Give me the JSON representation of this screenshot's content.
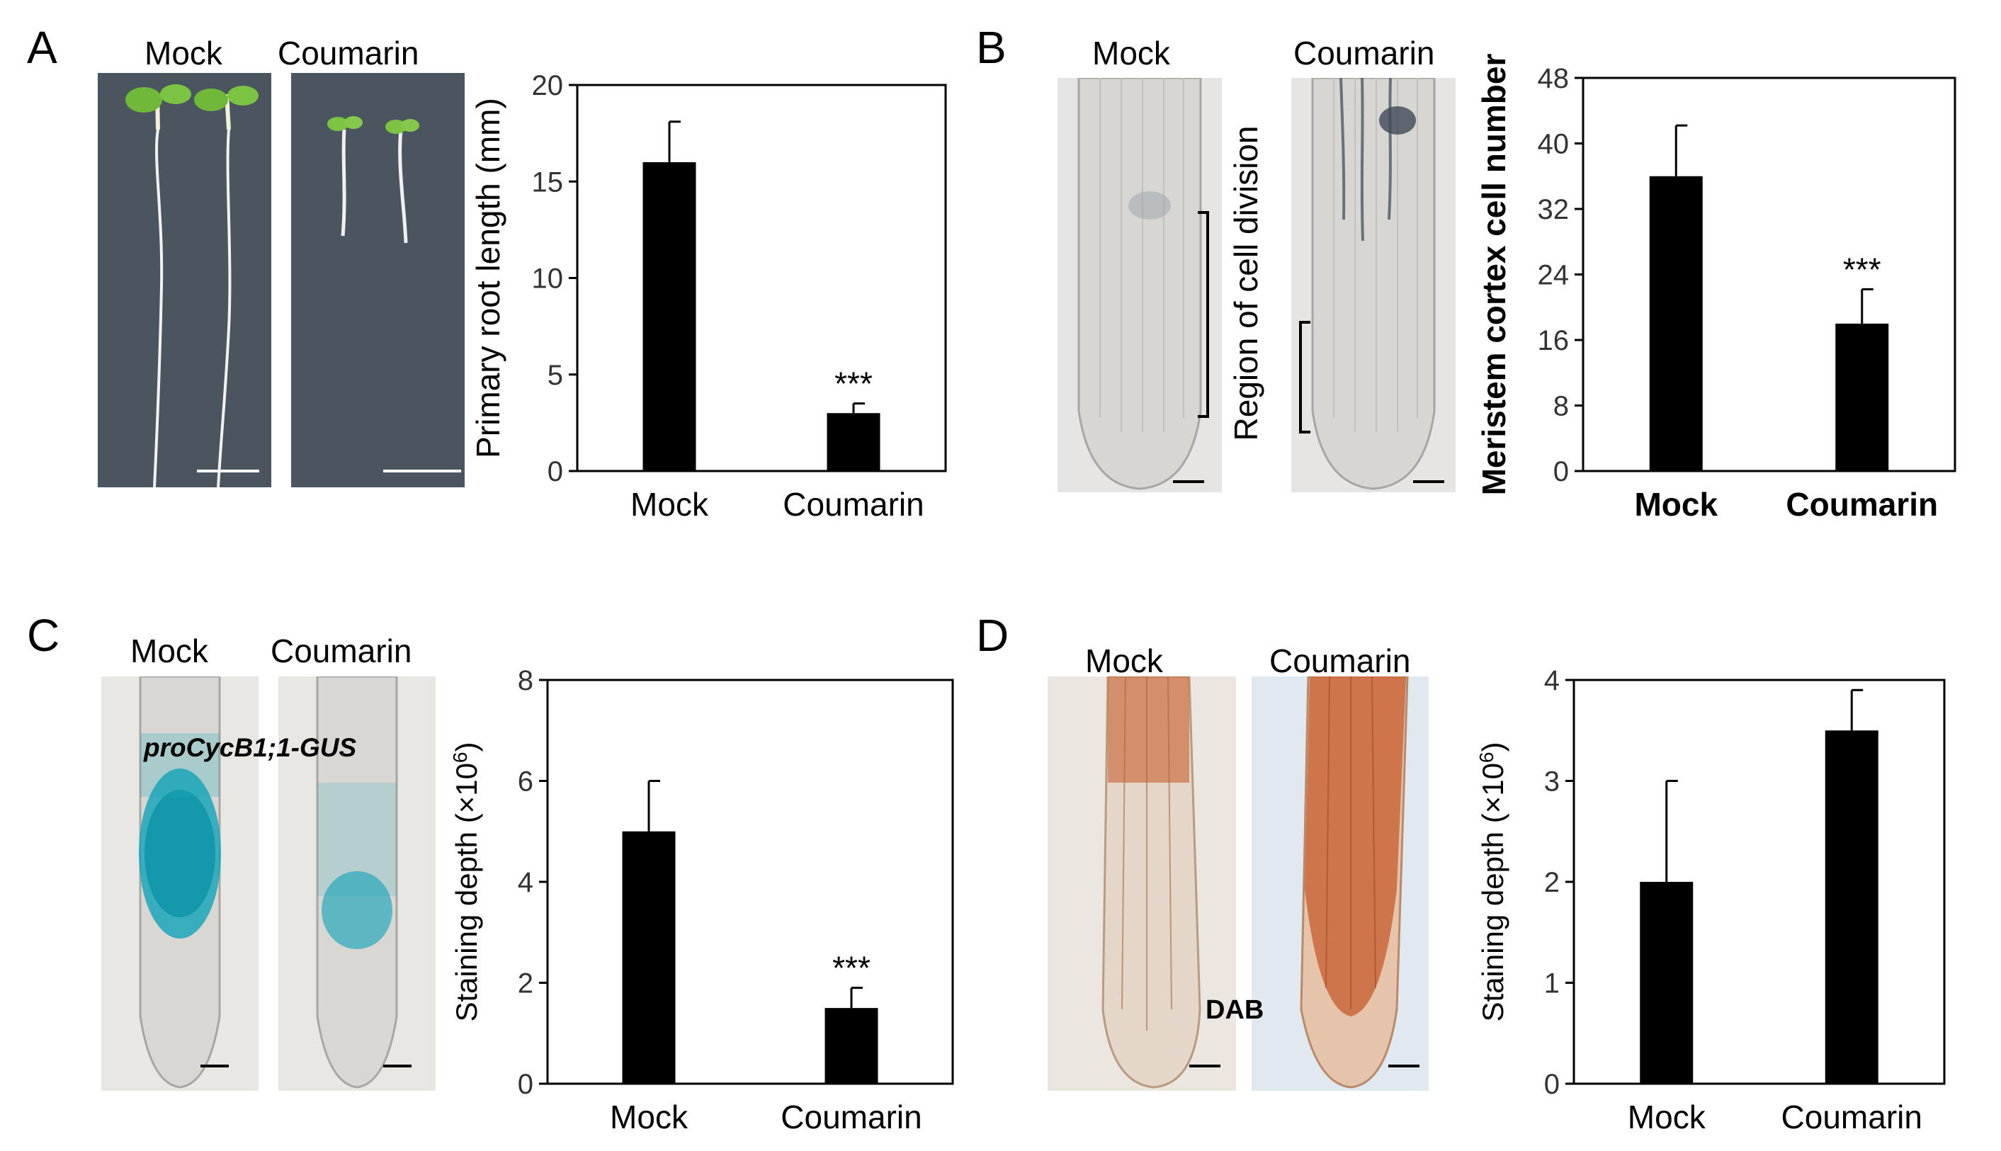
{
  "panels": [
    {
      "letter": "A",
      "image_labels": [
        "Mock",
        "Coumarin"
      ],
      "chart_data": {
        "type": "bar",
        "categories": [
          "Mock",
          "Coumarin"
        ],
        "values": [
          16,
          3
        ],
        "errors": [
          2.1,
          0.5
        ],
        "significance": [
          "",
          "***"
        ],
        "ylabel": "Primary root length (mm)",
        "ylim": [
          0,
          20
        ],
        "yticks": [
          0,
          5,
          10,
          15,
          20
        ],
        "bold_categories": false
      }
    },
    {
      "letter": "B",
      "image_labels": [
        "Mock",
        "Coumarin"
      ],
      "bracket_label": "Region of cell division",
      "chart_data": {
        "type": "bar",
        "categories": [
          "Mock",
          "Coumarin"
        ],
        "values": [
          36,
          18
        ],
        "errors": [
          6.2,
          4.2
        ],
        "significance": [
          "",
          "***"
        ],
        "ylabel": "Meristem cortex cell number",
        "ylim": [
          0,
          48
        ],
        "yticks": [
          0,
          8,
          16,
          24,
          32,
          40,
          48
        ],
        "bold_categories": true
      }
    },
    {
      "letter": "C",
      "image_labels": [
        "Mock",
        "Coumarin"
      ],
      "image_annotation": "proCycB1;1-GUS",
      "chart_data": {
        "type": "bar",
        "categories": [
          "Mock",
          "Coumarin"
        ],
        "values": [
          5,
          1.5
        ],
        "errors": [
          1.0,
          0.4
        ],
        "significance": [
          "",
          "***"
        ],
        "ylabel_main": "Staining depth (×10",
        "ylabel_sup": "6",
        "ylabel_end": ")",
        "ylim": [
          0,
          8
        ],
        "yticks": [
          0,
          2,
          4,
          6,
          8
        ],
        "bold_categories": false
      }
    },
    {
      "letter": "D",
      "image_labels": [
        "Mock",
        "Coumarin"
      ],
      "image_annotation": "DAB",
      "chart_data": {
        "type": "bar",
        "categories": [
          "Mock",
          "Coumarin"
        ],
        "values": [
          2,
          3.5
        ],
        "errors": [
          1.0,
          0.4
        ],
        "significance": [
          "",
          ""
        ],
        "ylabel_main": "Staining depth (×10",
        "ylabel_sup": "6",
        "ylabel_end": ")",
        "ylim": [
          0,
          4
        ],
        "yticks": [
          0,
          1,
          2,
          3,
          4
        ],
        "bold_categories": false
      }
    }
  ],
  "colors": {
    "bar": "#000000",
    "seedling_bg": "#4a5560",
    "root_bg": "#e8e5e2",
    "gus_blue": "#1aa6b8",
    "dab_brown": "#c9673a"
  }
}
